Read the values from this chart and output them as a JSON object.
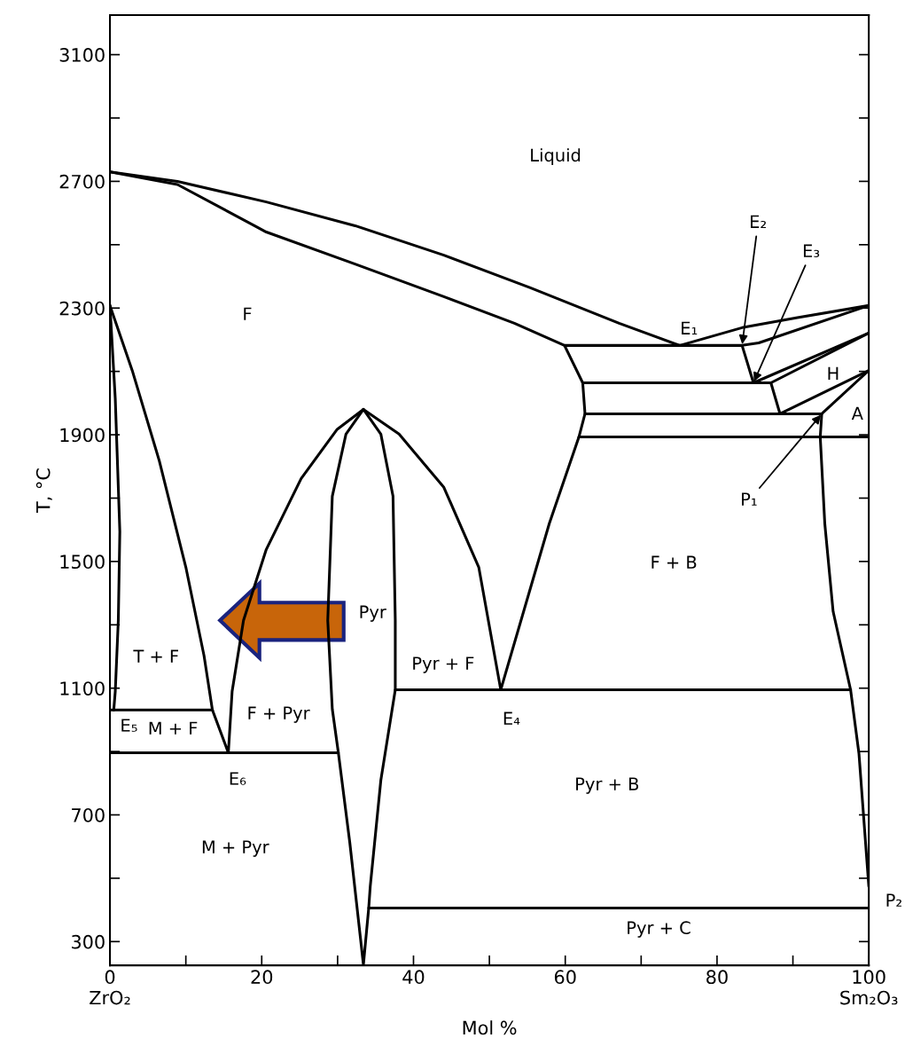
{
  "chart_data": {
    "type": "line",
    "xlabel": "Mol %",
    "ylabel": "T, °C",
    "xlim": [
      0,
      100
    ],
    "ylim": [
      225,
      3225
    ],
    "xticks": [
      {
        "value": 0,
        "label": "0\nZrO₂"
      },
      {
        "value": 10,
        "label": null
      },
      20,
      {
        "value": 30,
        "label": null
      },
      40,
      {
        "value": 50,
        "label": null
      },
      60,
      {
        "value": 70,
        "label": null
      },
      80,
      {
        "value": 90,
        "label": null
      },
      {
        "value": 100,
        "label": "100\nSm₂O₃"
      }
    ],
    "yticks": [
      300,
      {
        "value": 500,
        "label": null
      },
      700,
      {
        "value": 900,
        "label": null
      },
      1100,
      {
        "value": 1300,
        "label": null
      },
      1500,
      {
        "value": 1700,
        "label": null
      },
      1900,
      {
        "value": 2100,
        "label": null
      },
      2300,
      {
        "value": 2500,
        "label": null
      },
      2700,
      {
        "value": 2900,
        "label": null
      },
      3100
    ],
    "legend": false,
    "series": [
      {
        "color": "#000000",
        "x": [
          0,
          8.9,
          20.6,
          32.3,
          44,
          55.4,
          67.1,
          75.1,
          83.3,
          90.6,
          100
        ],
        "values": [
          2730,
          2700,
          2635,
          2560,
          2467,
          2364,
          2252,
          2182,
          2238,
          2270,
          2308
        ]
      },
      {
        "color": "#000000",
        "x": [
          0,
          3,
          6.5,
          10,
          12.4,
          13.5,
          15.6,
          16.1,
          17.6,
          20.6,
          25.2,
          29.9,
          33.4,
          38.1,
          44,
          48.6,
          51.5,
          57.9,
          61.8,
          62.6,
          62.3,
          59.9,
          53.3,
          44,
          32.3,
          20.6,
          8.9,
          0
        ],
        "values": [
          2308,
          2098,
          1818,
          1482,
          1202,
          1031,
          896,
          1090,
          1314,
          1538,
          1762,
          1916,
          1980,
          1902,
          1734,
          1482,
          1095,
          1620,
          1893,
          1966,
          2064,
          2182,
          2252,
          2336,
          2439,
          2540,
          2690,
          2730
        ]
      },
      {
        "color": "#000000",
        "x": [
          59.9,
          83.3,
          85.5,
          100
        ],
        "values": [
          2182,
          2182,
          2190,
          2308
        ]
      },
      {
        "color": "#000000",
        "x": [
          83.3,
          84.8,
          100
        ],
        "values": [
          2182,
          2064,
          2221
        ]
      },
      {
        "color": "#000000",
        "x": [
          62.3,
          87.1,
          100
        ],
        "values": [
          2064,
          2064,
          2221
        ]
      },
      {
        "color": "#000000",
        "x": [
          87.1,
          88.3,
          100
        ],
        "values": [
          2064,
          1966,
          2103
        ]
      },
      {
        "color": "#000000",
        "x": [
          62.6,
          93.8,
          100
        ],
        "values": [
          1966,
          1966,
          2103
        ]
      },
      {
        "color": "#000000",
        "x": [
          61.8,
          100
        ],
        "values": [
          1893,
          1893
        ]
      },
      {
        "color": "#000000",
        "x": [
          93.8,
          93.6,
          94.2,
          95.3,
          97.6,
          98.7,
          100
        ],
        "values": [
          1966,
          1893,
          1620,
          1342,
          1095,
          894,
          474
        ]
      },
      {
        "color": "#000000",
        "x": [
          37.6,
          97.6
        ],
        "values": [
          1095,
          1095
        ]
      },
      {
        "color": "#000000",
        "x": [
          30.1,
          31.6,
          33.4,
          34.1,
          100
        ],
        "values": [
          896,
          614,
          227,
          406,
          406
        ]
      },
      {
        "color": "#000000",
        "x": [
          0,
          13.5
        ],
        "values": [
          1031,
          1031
        ]
      },
      {
        "color": "#000000",
        "x": [
          0,
          30.1,
          29.3,
          28.7,
          29.3,
          31.1,
          33.4
        ],
        "values": [
          896,
          896,
          1034,
          1314,
          1706,
          1902,
          1980
        ]
      },
      {
        "color": "#000000",
        "x": [
          0,
          0.7,
          1.3,
          1.1,
          0.7,
          0.5
        ],
        "values": [
          2308,
          2014,
          1594,
          1314,
          1090,
          1031
        ]
      },
      {
        "color": "#000000",
        "x": [
          34.1,
          34.3,
          35.7,
          37.6,
          37.6,
          37.3,
          35.7,
          33.4
        ],
        "values": [
          406,
          474,
          810,
          1095,
          1314,
          1706,
          1902,
          1980
        ]
      }
    ],
    "annotations": [
      "Liquid",
      "F",
      "E₁",
      {
        "text": "E₂",
        "x": 83.3,
        "y": 2182
      },
      {
        "text": "E₃",
        "x": 84.8,
        "y": 2064
      },
      "H",
      "A",
      {
        "text": "P₁",
        "x": 93.8,
        "y": 1966
      },
      "F + B",
      "Pyr",
      "T + F",
      "Pyr + F",
      "E₄",
      "E₅",
      "M + F",
      "F + Pyr",
      "E₆",
      "Pyr + B",
      "M + Pyr",
      "P₂",
      "Pyr + C"
    ]
  }
}
